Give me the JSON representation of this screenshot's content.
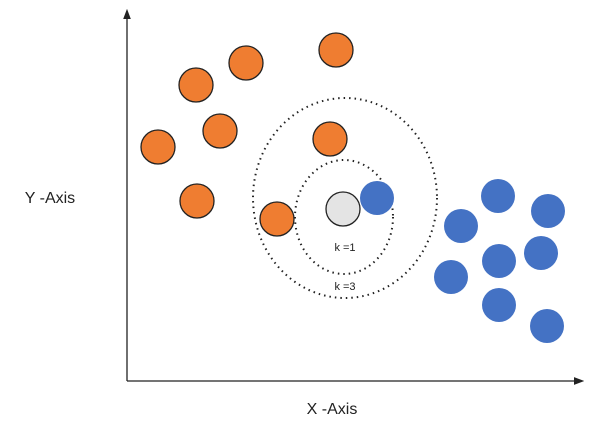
{
  "y_axis_label": "Y -Axis",
  "x_axis_label": "X -Axis",
  "inner_circle_label": "k =1",
  "outer_circle_label": "k =3"
}
